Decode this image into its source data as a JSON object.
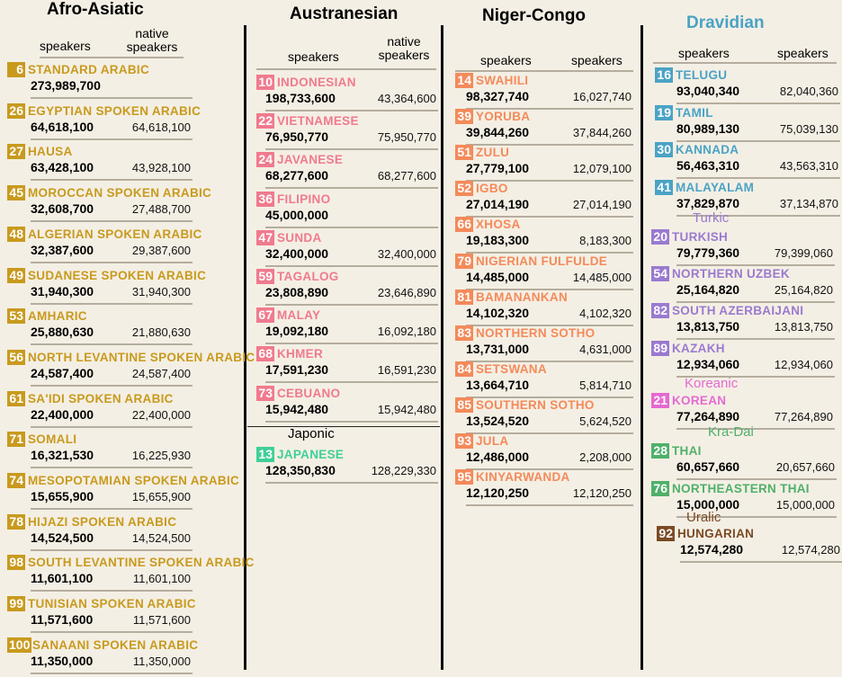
{
  "colors": {
    "afro": "#c89a1e",
    "austro": "#f07a8e",
    "niger": "#f48a5a",
    "dravidian": "#4aa3c6",
    "turkic": "#9a7ad0",
    "koreanic": "#e46ad2",
    "kradai": "#4fb06a",
    "japonic": "#3fcf98",
    "uralic": "#7a4a24"
  },
  "afro_asiatic": {
    "title": "Afro-Asiatic",
    "col1": "speakers",
    "col2": "native speakers",
    "languages": [
      {
        "rank": "6",
        "name": "STANDARD ARABIC",
        "speakers": "273,989,700",
        "native": ""
      },
      {
        "rank": "26",
        "name": "EGYPTIAN SPOKEN ARABIC",
        "speakers": "64,618,100",
        "native": "64,618,100"
      },
      {
        "rank": "27",
        "name": "HAUSA",
        "speakers": "63,428,100",
        "native": "43,928,100"
      },
      {
        "rank": "45",
        "name": "MOROCCAN SPOKEN ARABIC",
        "speakers": "32,608,700",
        "native": "27,488,700"
      },
      {
        "rank": "48",
        "name": "ALGERIAN SPOKEN ARABIC",
        "speakers": "32,387,600",
        "native": "29,387,600"
      },
      {
        "rank": "49",
        "name": "SUDANESE SPOKEN ARABIC",
        "speakers": "31,940,300",
        "native": "31,940,300"
      },
      {
        "rank": "53",
        "name": "AMHARIC",
        "speakers": "25,880,630",
        "native": "21,880,630"
      },
      {
        "rank": "56",
        "name": "NORTH LEVANTINE SPOKEN ARABIC",
        "speakers": "24,587,400",
        "native": "24,587,400"
      },
      {
        "rank": "61",
        "name": "SA'IDI SPOKEN ARABIC",
        "speakers": "22,400,000",
        "native": "22,400,000"
      },
      {
        "rank": "71",
        "name": "SOMALI",
        "speakers": "16,321,530",
        "native": "16,225,930"
      },
      {
        "rank": "74",
        "name": "MESOPOTAMIAN SPOKEN ARABIC",
        "speakers": "15,655,900",
        "native": "15,655,900"
      },
      {
        "rank": "78",
        "name": "HIJAZI SPOKEN ARABIC",
        "speakers": "14,524,500",
        "native": "14,524,500"
      },
      {
        "rank": "98",
        "name": "SOUTH LEVANTINE SPOKEN ARABIC",
        "speakers": "11,601,100",
        "native": "11,601,100"
      },
      {
        "rank": "99",
        "name": "TUNISIAN SPOKEN ARABIC",
        "speakers": "11,571,600",
        "native": "11,571,600"
      },
      {
        "rank": "100",
        "name": "SANAANI SPOKEN ARABIC",
        "speakers": "11,350,000",
        "native": "11,350,000"
      }
    ]
  },
  "austronesian": {
    "title": "Austranesian",
    "col1": "speakers",
    "col2": "native speakers",
    "languages": [
      {
        "rank": "10",
        "name": "INDONESIAN",
        "speakers": "198,733,600",
        "native": "43,364,600"
      },
      {
        "rank": "22",
        "name": "VIETNAMESE",
        "speakers": "76,950,770",
        "native": "75,950,770"
      },
      {
        "rank": "24",
        "name": "JAVANESE",
        "speakers": "68,277,600",
        "native": "68,277,600"
      },
      {
        "rank": "36",
        "name": "FILIPINO",
        "speakers": "45,000,000",
        "native": ""
      },
      {
        "rank": "47",
        "name": "SUNDA",
        "speakers": "32,400,000",
        "native": "32,400,000"
      },
      {
        "rank": "59",
        "name": "TAGALOG",
        "speakers": "23,808,890",
        "native": "23,646,890"
      },
      {
        "rank": "67",
        "name": "MALAY",
        "speakers": "19,092,180",
        "native": "16,092,180"
      },
      {
        "rank": "68",
        "name": "KHMER",
        "speakers": "17,591,230",
        "native": "16,591,230"
      },
      {
        "rank": "73",
        "name": "CEBUANO",
        "speakers": "15,942,480",
        "native": "15,942,480"
      }
    ],
    "japonic_label": "Japonic",
    "japonic": {
      "rank": "13",
      "name": "JAPANESE",
      "speakers": "128,350,830",
      "native": "128,229,330"
    }
  },
  "niger_congo": {
    "title": "Niger-Congo",
    "col1": "speakers",
    "col2": "speakers",
    "languages": [
      {
        "rank": "14",
        "name": "SWAHILI",
        "speakers": "98,327,740",
        "native": "16,027,740"
      },
      {
        "rank": "39",
        "name": "YORUBA",
        "speakers": "39,844,260",
        "native": "37,844,260"
      },
      {
        "rank": "51",
        "name": "ZULU",
        "speakers": "27,779,100",
        "native": "12,079,100"
      },
      {
        "rank": "52",
        "name": "IGBO",
        "speakers": "27,014,190",
        "native": "27,014,190"
      },
      {
        "rank": "66",
        "name": "XHOSA",
        "speakers": "19,183,300",
        "native": "8,183,300"
      },
      {
        "rank": "79",
        "name": "NIGERIAN FULFULDE",
        "speakers": "14,485,000",
        "native": "14,485,000"
      },
      {
        "rank": "81",
        "name": "BAMANANKAN",
        "speakers": "14,102,320",
        "native": "4,102,320"
      },
      {
        "rank": "83",
        "name": "NORTHERN SOTHO",
        "speakers": "13,731,000",
        "native": "4,631,000"
      },
      {
        "rank": "84",
        "name": "SETSWANA",
        "speakers": "13,664,710",
        "native": "5,814,710"
      },
      {
        "rank": "85",
        "name": "SOUTHERN SOTHO",
        "speakers": "13,524,520",
        "native": "5,624,520"
      },
      {
        "rank": "93",
        "name": "JULA",
        "speakers": "12,486,000",
        "native": "2,208,000"
      },
      {
        "rank": "95",
        "name": "KINYARWANDA",
        "speakers": "12,120,250",
        "native": "12,120,250"
      }
    ]
  },
  "dravidian": {
    "title": "Dravidian",
    "col1": "speakers",
    "col2": "speakers",
    "languages": [
      {
        "rank": "16",
        "name": "TELUGU",
        "speakers": "93,040,340",
        "native": "82,040,360"
      },
      {
        "rank": "19",
        "name": "TAMIL",
        "speakers": "80,989,130",
        "native": "75,039,130"
      },
      {
        "rank": "30",
        "name": "KANNADA",
        "speakers": "56,463,310",
        "native": "43,563,310"
      },
      {
        "rank": "41",
        "name": "MALAYALAM",
        "speakers": "37,829,870",
        "native": "37,134,870"
      }
    ],
    "turkic_label": "Turkic",
    "turkic": [
      {
        "rank": "20",
        "name": "TURKISH",
        "speakers": "79,779,360",
        "native": "79,399,060"
      },
      {
        "rank": "54",
        "name": "NORTHERN UZBEK",
        "speakers": "25,164,820",
        "native": "25,164,820"
      },
      {
        "rank": "82",
        "name": "SOUTH AZERBAIJANI",
        "speakers": "13,813,750",
        "native": "13,813,750"
      },
      {
        "rank": "89",
        "name": "KAZAKH",
        "speakers": "12,934,060",
        "native": "12,934,060"
      }
    ],
    "koreanic_label": "Koreanic",
    "koreanic": {
      "rank": "21",
      "name": "KOREAN",
      "speakers": "77,264,890",
      "native": "77,264,890"
    },
    "kradai_label": "Kra-Dai",
    "kradai": [
      {
        "rank": "28",
        "name": "THAI",
        "speakers": "60,657,660",
        "native": "20,657,660"
      },
      {
        "rank": "76",
        "name": "NORTHEASTERN THAI",
        "speakers": "15,000,000",
        "native": "15,000,000"
      }
    ],
    "uralic_label": "Uralic",
    "uralic": {
      "rank": "92",
      "name": "HUNGARIAN",
      "speakers": "12,574,280",
      "native": "12,574,280"
    }
  }
}
